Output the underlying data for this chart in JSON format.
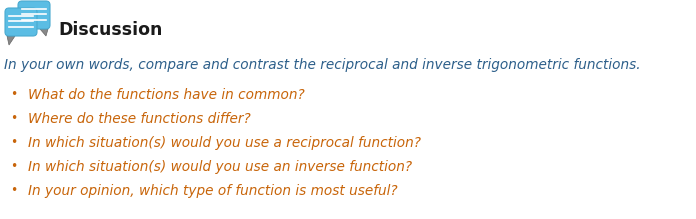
{
  "background_color": "#ffffff",
  "title_text": "Discussion",
  "title_color": "#1a1a1a",
  "title_fontsize": 12.5,
  "intro_text": "In your own words, compare and contrast the reciprocal and inverse trigonometric functions.",
  "intro_color": "#2d5f8a",
  "intro_fontsize": 9.8,
  "bullet_color": "#c8650a",
  "bullet_fontsize": 9.8,
  "bullets": [
    "What do the functions have in common?",
    "Where do these functions differ?",
    "In which situation(s) would you use a reciprocal function?",
    "In which situation(s) would you use an inverse function?",
    "In your opinion, which type of function is most useful?"
  ],
  "bullet_marker": "•"
}
